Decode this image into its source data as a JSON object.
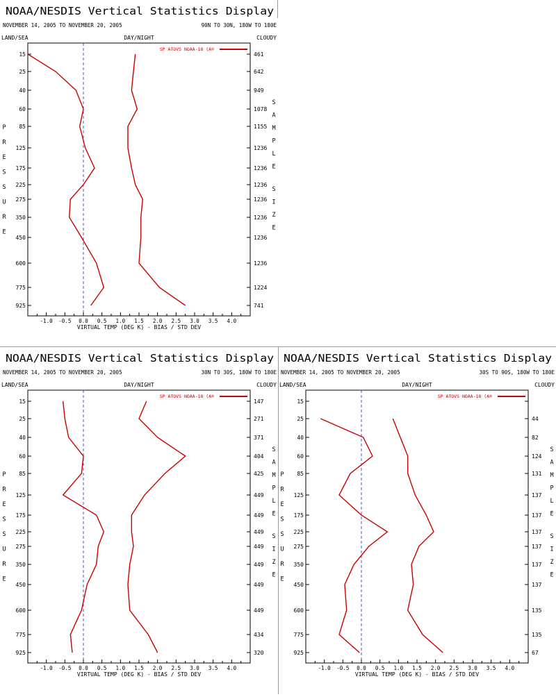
{
  "colors": {
    "series_bias": "#cc0000",
    "series_std": "#cc0000",
    "axis": "#000000",
    "zero_line": "#4a5bb5",
    "divider": "#9a9a9a"
  },
  "panels": [
    {
      "title": "NOAA/NESDIS Vertical Statistics Display",
      "date_range": "NOVEMBER 14, 2005 TO NOVEMBER 20, 2005",
      "region": "90N TO 30N, 180W TO 180E",
      "top_left": "LAND/SEA",
      "top_center": "DAY/NIGHT",
      "top_right": "CLOUDY",
      "legend": "SP ATOVS NOAA-18 (A®",
      "left_side_label": "PRESSURE",
      "right_side_label_1": "SAMPLE",
      "right_side_label_2": "SIZE",
      "xlabel": "VIRTUAL TEMP (DEG K) - BIAS / STD DEV"
    },
    {
      "title": "NOAA/NESDIS Vertical Statistics Display",
      "date_range": "NOVEMBER 14, 2005 TO NOVEMBER 20, 2005",
      "region": "30N TO 30S, 180W TO 180E",
      "top_left": "LAND/SEA",
      "top_center": "DAY/NIGHT",
      "top_right": "CLOUDY",
      "legend": "SP ATOVS NOAA-18 (A®",
      "left_side_label": "PRESSURE",
      "right_side_label_1": "SAMPLE",
      "right_side_label_2": "SIZE",
      "xlabel": "VIRTUAL TEMP (DEG K) - BIAS / STD DEV"
    },
    {
      "title": "NOAA/NESDIS Vertical Statistics Display",
      "date_range": "NOVEMBER 14, 2005 TO NOVEMBER 20, 2005",
      "region": "30S TO 90S, 180W TO 180E",
      "top_left": "LAND/SEA",
      "top_center": "DAY/NIGHT",
      "top_right": "CLOUDY",
      "legend": "SP ATOVS NOAA-18 (A®",
      "left_side_label": "PRESSURE",
      "right_side_label_1": "SAMPLE",
      "right_side_label_2": "SIZE",
      "xlabel": "VIRTUAL TEMP (DEG K) - BIAS / STD DEV"
    }
  ],
  "chart_data": [
    {
      "type": "line",
      "xlabel": "VIRTUAL TEMP (DEG K) - BIAS / STD DEV",
      "ylabel": "PRESSURE",
      "xlim": [
        -1.5,
        4.5
      ],
      "xticks": [
        "-1.0",
        "-0.5",
        "0.0",
        "0.5",
        "1.0",
        "1.5",
        "2.0",
        "2.5",
        "3.0",
        "3.5",
        "4.0"
      ],
      "pressure_levels": [
        "15",
        "25",
        "40",
        "60",
        "85",
        "125",
        "175",
        "225",
        "275",
        "350",
        "450",
        "600",
        "775",
        "925"
      ],
      "sample_size": [
        "461",
        "642",
        "949",
        "1078",
        "1155",
        "1236",
        "1236",
        "1236",
        "1236",
        "1236",
        "1236",
        "1236",
        "1224",
        "741"
      ],
      "series": [
        {
          "values": [
            -1.5,
            -0.75,
            -0.2,
            0.0,
            -0.1,
            0.05,
            0.3,
            0.0,
            -0.35,
            -0.38,
            -0.05,
            0.35,
            0.55,
            0.2
          ]
        },
        {
          "values": [
            1.4,
            1.35,
            1.3,
            1.45,
            1.2,
            1.2,
            1.3,
            1.4,
            1.6,
            1.55,
            1.55,
            1.5,
            2.05,
            2.75
          ]
        }
      ]
    },
    {
      "type": "line",
      "xlabel": "VIRTUAL TEMP (DEG K) - BIAS / STD DEV",
      "ylabel": "PRESSURE",
      "xlim": [
        -1.5,
        4.5
      ],
      "xticks": [
        "-1.0",
        "-0.5",
        "0.0",
        "0.5",
        "1.0",
        "1.5",
        "2.0",
        "2.5",
        "3.0",
        "3.5",
        "4.0"
      ],
      "pressure_levels": [
        "15",
        "25",
        "40",
        "60",
        "85",
        "125",
        "175",
        "225",
        "275",
        "350",
        "450",
        "600",
        "775",
        "925"
      ],
      "sample_size": [
        "147",
        "271",
        "371",
        "404",
        "425",
        "449",
        "449",
        "449",
        "449",
        "449",
        "449",
        "449",
        "434",
        "320"
      ],
      "series": [
        {
          "values": [
            -0.55,
            -0.5,
            -0.4,
            0.0,
            -0.05,
            -0.55,
            0.35,
            0.55,
            0.4,
            0.35,
            0.1,
            -0.05,
            -0.35,
            -0.3
          ]
        },
        {
          "values": [
            1.7,
            1.5,
            2.0,
            2.75,
            2.2,
            1.65,
            1.3,
            1.3,
            1.35,
            1.25,
            1.2,
            1.25,
            1.75,
            2.0
          ]
        }
      ]
    },
    {
      "type": "line",
      "xlabel": "VIRTUAL TEMP (DEG K) - BIAS / STD DEV",
      "ylabel": "PRESSURE",
      "xlim": [
        -1.5,
        4.5
      ],
      "xticks": [
        "-1.0",
        "-0.5",
        "0.0",
        "0.5",
        "1.0",
        "1.5",
        "2.0",
        "2.5",
        "3.0",
        "3.5",
        "4.0"
      ],
      "pressure_levels": [
        "15",
        "25",
        "40",
        "60",
        "85",
        "125",
        "175",
        "225",
        "275",
        "350",
        "450",
        "600",
        "775",
        "925"
      ],
      "sample_size": [
        null,
        "44",
        "82",
        "124",
        "131",
        "137",
        "137",
        "137",
        "137",
        "137",
        "137",
        "135",
        "135",
        "67"
      ],
      "series": [
        {
          "values": [
            null,
            -1.1,
            0.05,
            0.3,
            -0.3,
            -0.6,
            0.0,
            0.7,
            0.2,
            -0.2,
            -0.45,
            -0.4,
            -0.6,
            -0.05
          ]
        },
        {
          "values": [
            null,
            0.85,
            1.05,
            1.25,
            1.25,
            1.45,
            1.75,
            1.95,
            1.55,
            1.35,
            1.4,
            1.25,
            1.65,
            2.2
          ]
        }
      ]
    }
  ]
}
